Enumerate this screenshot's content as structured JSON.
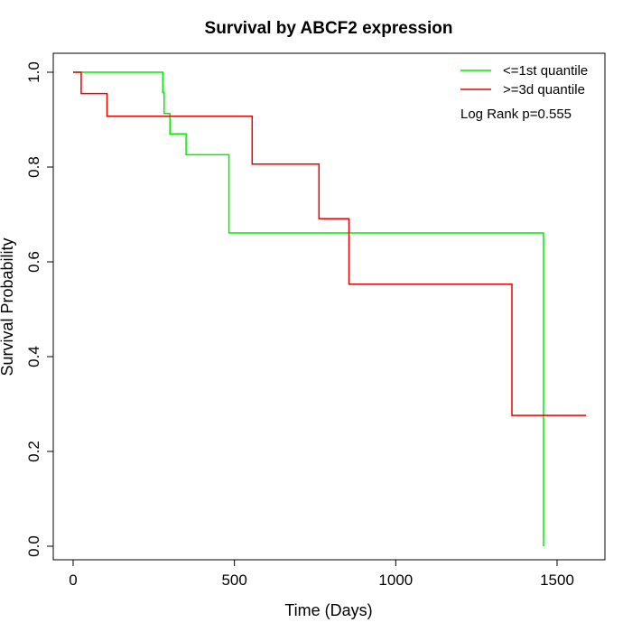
{
  "chart_data": {
    "type": "line",
    "step": true,
    "title": "Survival by ABCF2 expression",
    "xlabel": "Time (Days)",
    "ylabel": "Survival Probability",
    "xlim": [
      0,
      1650
    ],
    "ylim": [
      0,
      1
    ],
    "x_ticks": [
      0,
      500,
      1000,
      1500
    ],
    "y_ticks": [
      0.0,
      0.2,
      0.4,
      0.6,
      0.8,
      1.0
    ],
    "x_tick_labels": [
      "0",
      "500",
      "1000",
      "1500"
    ],
    "y_tick_labels": [
      "0.0",
      "0.2",
      "0.4",
      "0.6",
      "0.8",
      "1.0"
    ],
    "grid": false,
    "legend_position": "top-right",
    "annotation": "Log Rank p=0.555",
    "series": [
      {
        "name": "<=1st quantile",
        "color": "#00ee00",
        "x": [
          0,
          278,
          282,
          300,
          350,
          483,
          1458,
          1458
        ],
        "y": [
          1.0,
          0.957,
          0.913,
          0.87,
          0.826,
          0.661,
          0.661,
          0.0
        ]
      },
      {
        "name": ">=3d quantile",
        "color": "#ee0000",
        "x": [
          0,
          25,
          105,
          555,
          762,
          855,
          1360,
          1590
        ],
        "y": [
          1.0,
          0.955,
          0.907,
          0.806,
          0.691,
          0.553,
          0.276,
          0.276
        ]
      }
    ]
  }
}
